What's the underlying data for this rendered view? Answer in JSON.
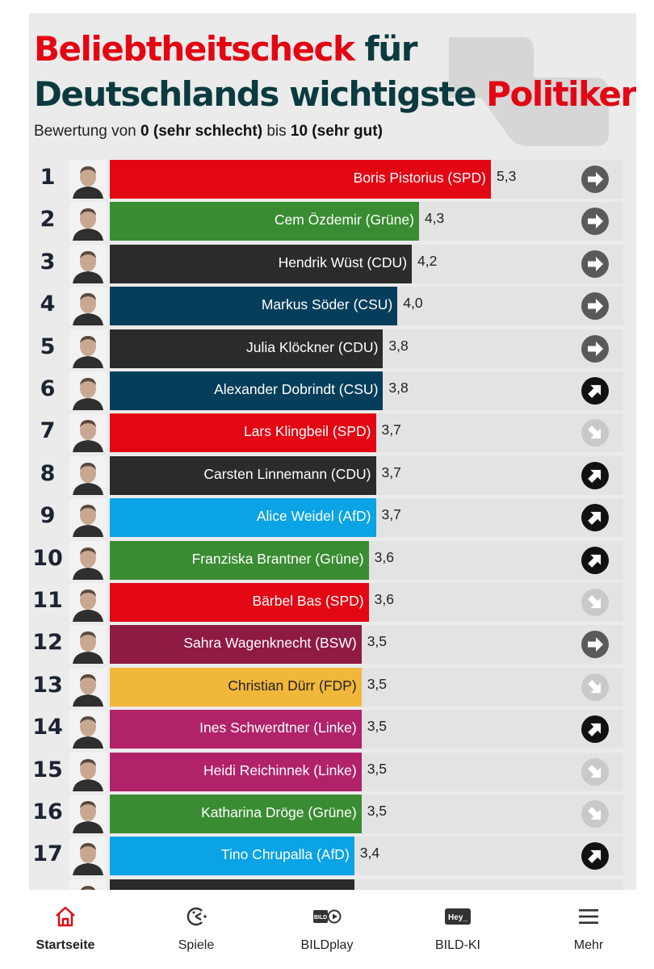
{
  "header": {
    "title_line1_red": "Beliebtheitscheck",
    "title_line1_dark": "für",
    "title_line2_dark": "Deutschlands wichtigste",
    "title_line2_red": "Politiker",
    "subtitle_prefix": "Bewertung von",
    "subtitle_bold1": "0 (sehr schlecht)",
    "subtitle_mid": "bis",
    "subtitle_bold2": "10 (sehr gut)"
  },
  "colors": {
    "SPD": "#e30613",
    "Grüne": "#3a8c32",
    "CDU": "#2b2b2b",
    "CSU": "#053e5a",
    "AfD": "#0aa3e5",
    "BSW": "#8f1a43",
    "FDP": "#f1b73a",
    "Linke": "#b1226a",
    "title_red": "#e30613",
    "title_dark": "#0b3a3f"
  },
  "chart_data": {
    "type": "bar",
    "orientation": "horizontal",
    "xlim": [
      0,
      10
    ],
    "ranks": [
      "1",
      "2",
      "3",
      "4",
      "5",
      "6",
      "7",
      "8",
      "9",
      "10",
      "11",
      "12",
      "13",
      "14",
      "15",
      "16",
      "17"
    ],
    "categories": [
      "Boris Pistorius (SPD)",
      "Cem Özdemir (Grüne)",
      "Hendrik Wüst (CDU)",
      "Markus Söder (CSU)",
      "Julia Klöckner (CDU)",
      "Alexander Dobrindt (CSU)",
      "Lars Klingbeil (SPD)",
      "Carsten Linnemann (CDU)",
      "Alice Weidel (AfD)",
      "Franziska Brantner (Grüne)",
      "Bärbel Bas (SPD)",
      "Sahra Wagenknecht (BSW)",
      "Christian Dürr (FDP)",
      "Ines Schwerdtner (Linke)",
      "Heidi Reichinnek (Linke)",
      "Katharina Dröge (Grüne)",
      "Tino Chrupalla (AfD)"
    ],
    "values": [
      5.3,
      4.3,
      4.2,
      4.0,
      3.8,
      3.8,
      3.7,
      3.7,
      3.7,
      3.6,
      3.6,
      3.5,
      3.5,
      3.5,
      3.5,
      3.5,
      3.4
    ],
    "value_labels": [
      "5,3",
      "4,3",
      "4,2",
      "4,0",
      "3,8",
      "3,8",
      "3,7",
      "3,7",
      "3,7",
      "3,6",
      "3,6",
      "3,5",
      "3,5",
      "3,5",
      "3,5",
      "3,5",
      "3,4"
    ],
    "parties": [
      "SPD",
      "Grüne",
      "CDU",
      "CSU",
      "CDU",
      "CSU",
      "SPD",
      "CDU",
      "AfD",
      "Grüne",
      "SPD",
      "BSW",
      "FDP",
      "Linke",
      "Linke",
      "Grüne",
      "AfD"
    ],
    "trend": [
      "same",
      "same",
      "same",
      "same",
      "same",
      "up",
      "down",
      "up",
      "up",
      "up",
      "down",
      "same",
      "down",
      "up",
      "down",
      "down",
      "up"
    ],
    "trend_icons": {
      "same": "arrow-right-icon",
      "up": "arrow-up-right-icon",
      "down": "arrow-down-right-icon"
    },
    "partial_last_row_party": "CDU",
    "partial_last_row_value": 3.4
  },
  "bottom_nav": {
    "items": [
      {
        "label": "Startseite",
        "icon": "home-icon",
        "active": true
      },
      {
        "label": "Spiele",
        "icon": "games-icon",
        "active": false
      },
      {
        "label": "BILDplay",
        "icon": "bildplay-icon",
        "active": false
      },
      {
        "label": "BILD-KI",
        "icon": "hey-ki-icon",
        "active": false,
        "icon_text": "Hey_"
      },
      {
        "label": "Mehr",
        "icon": "menu-icon",
        "active": false
      }
    ],
    "active_color": "#e30613"
  }
}
